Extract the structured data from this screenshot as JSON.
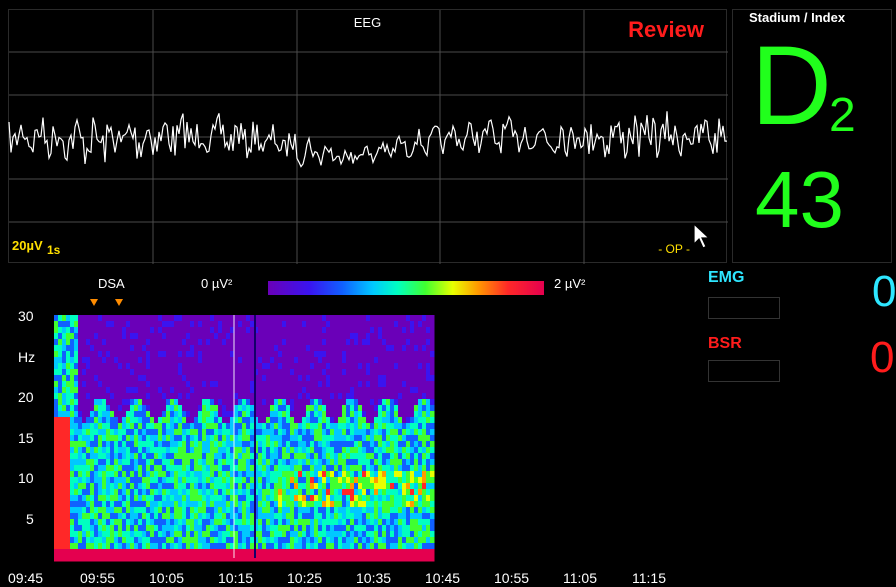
{
  "eeg": {
    "title": "EEG",
    "mode_label": "Review",
    "amplitude_scale": "20µV",
    "time_scale": "1s",
    "phase_label": "- OP -",
    "trace_color": "#ffffff",
    "grid_color": "#4a4a4a",
    "mode_color": "#ff1c1c",
    "scale_color": "#ffe000"
  },
  "index": {
    "title": "Stadium / Index",
    "stage_letter": "D",
    "stage_subscript": "2",
    "value": "43",
    "color": "#21ff1c"
  },
  "dsa": {
    "title": "DSA",
    "scale_min": "0 µV²",
    "scale_max": "2 µV²",
    "y_ticks": [
      "30",
      "Hz",
      "20",
      "15",
      "10",
      "5"
    ],
    "x_ticks": [
      "09:45",
      "09:55",
      "10:05",
      "10:15",
      "10:25",
      "10:35",
      "10:45",
      "10:55",
      "11:05",
      "11:15"
    ],
    "markers": [
      "marker-1",
      "marker-2"
    ],
    "marker_color": "#ff8c00",
    "colormap": [
      "#6a00b8",
      "#3a14f0",
      "#1060ff",
      "#00c8ff",
      "#00ffc0",
      "#40ff30",
      "#e8ff00",
      "#ff9a00",
      "#ff2828",
      "#e4004f"
    ]
  },
  "params": {
    "emg_label": "EMG",
    "emg_value": "0",
    "emg_color": "#2ee6ff",
    "bsr_label": "BSR",
    "bsr_value": "0",
    "bsr_color": "#ff1c1c"
  },
  "icons": [
    "cursor-arrow-icon"
  ]
}
